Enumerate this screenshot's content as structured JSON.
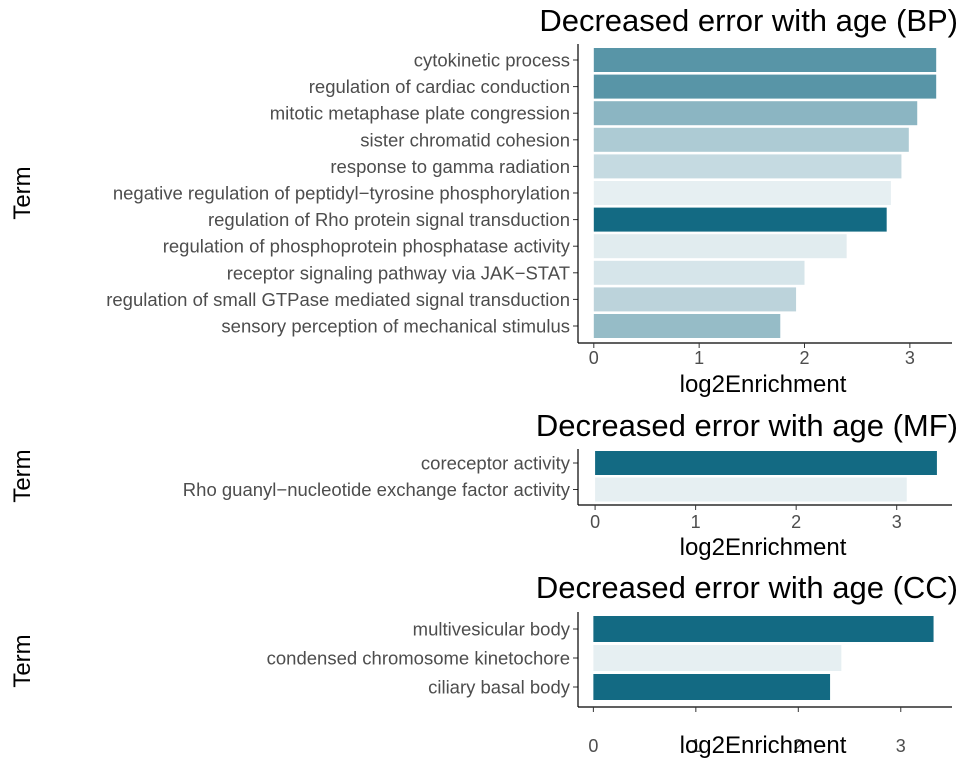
{
  "chart_data": [
    {
      "type": "bar",
      "orientation": "horizontal",
      "title": "Decreased error with age (BP)",
      "xlabel": "log2Enrichment",
      "ylabel": "Term",
      "xlim": [
        -0.15,
        3.4
      ],
      "xticks": [
        0,
        1,
        2,
        3
      ],
      "categories": [
        "cytokinetic process",
        "regulation of cardiac conduction",
        "mitotic metaphase plate congression",
        "sister chromatid cohesion",
        "response to gamma radiation",
        "negative regulation of peptidyl−tyrosine phosphorylation",
        "regulation of Rho protein signal transduction",
        "regulation of phosphoprotein phosphatase activity",
        "receptor signaling pathway via JAK−STAT",
        "regulation of small GTPase mediated signal transduction",
        "sensory perception of mechanical stimulus"
      ],
      "values": [
        3.25,
        3.25,
        3.07,
        2.99,
        2.92,
        2.82,
        2.78,
        2.4,
        2.0,
        1.92,
        1.77
      ],
      "colors": [
        "#5895a7",
        "#5895a7",
        "#8bb5c2",
        "#adcbd4",
        "#c5dae1",
        "#e6eff2",
        "#136a83",
        "#e1ecef",
        "#d6e5ea",
        "#bcd3db",
        "#96bcc7"
      ],
      "grid": false,
      "legend": "none"
    },
    {
      "type": "bar",
      "orientation": "horizontal",
      "title": "Decreased error with age (MF)",
      "xlabel": "log2Enrichment",
      "ylabel": "Term",
      "xlim": [
        -0.17,
        3.55
      ],
      "xticks": [
        0,
        1,
        2,
        3
      ],
      "categories": [
        "coreceptor activity",
        "Rho guanyl−nucleotide exchange factor activity"
      ],
      "values": [
        3.4,
        3.1
      ],
      "colors": [
        "#136a83",
        "#e6eff2"
      ],
      "grid": false,
      "legend": "none"
    },
    {
      "type": "bar",
      "orientation": "horizontal",
      "title": "Decreased error with age (CC)",
      "xlabel": "log2Enrichment",
      "ylabel": "Term",
      "xlim": [
        -0.15,
        3.5
      ],
      "xticks": [
        0,
        1,
        2,
        3
      ],
      "categories": [
        "multivesicular body",
        "condensed chromosome kinetochore",
        "ciliary basal body"
      ],
      "values": [
        3.32,
        2.42,
        2.31
      ],
      "colors": [
        "#136a83",
        "#e6eff2",
        "#136a83"
      ],
      "grid": false,
      "legend": "none"
    }
  ]
}
